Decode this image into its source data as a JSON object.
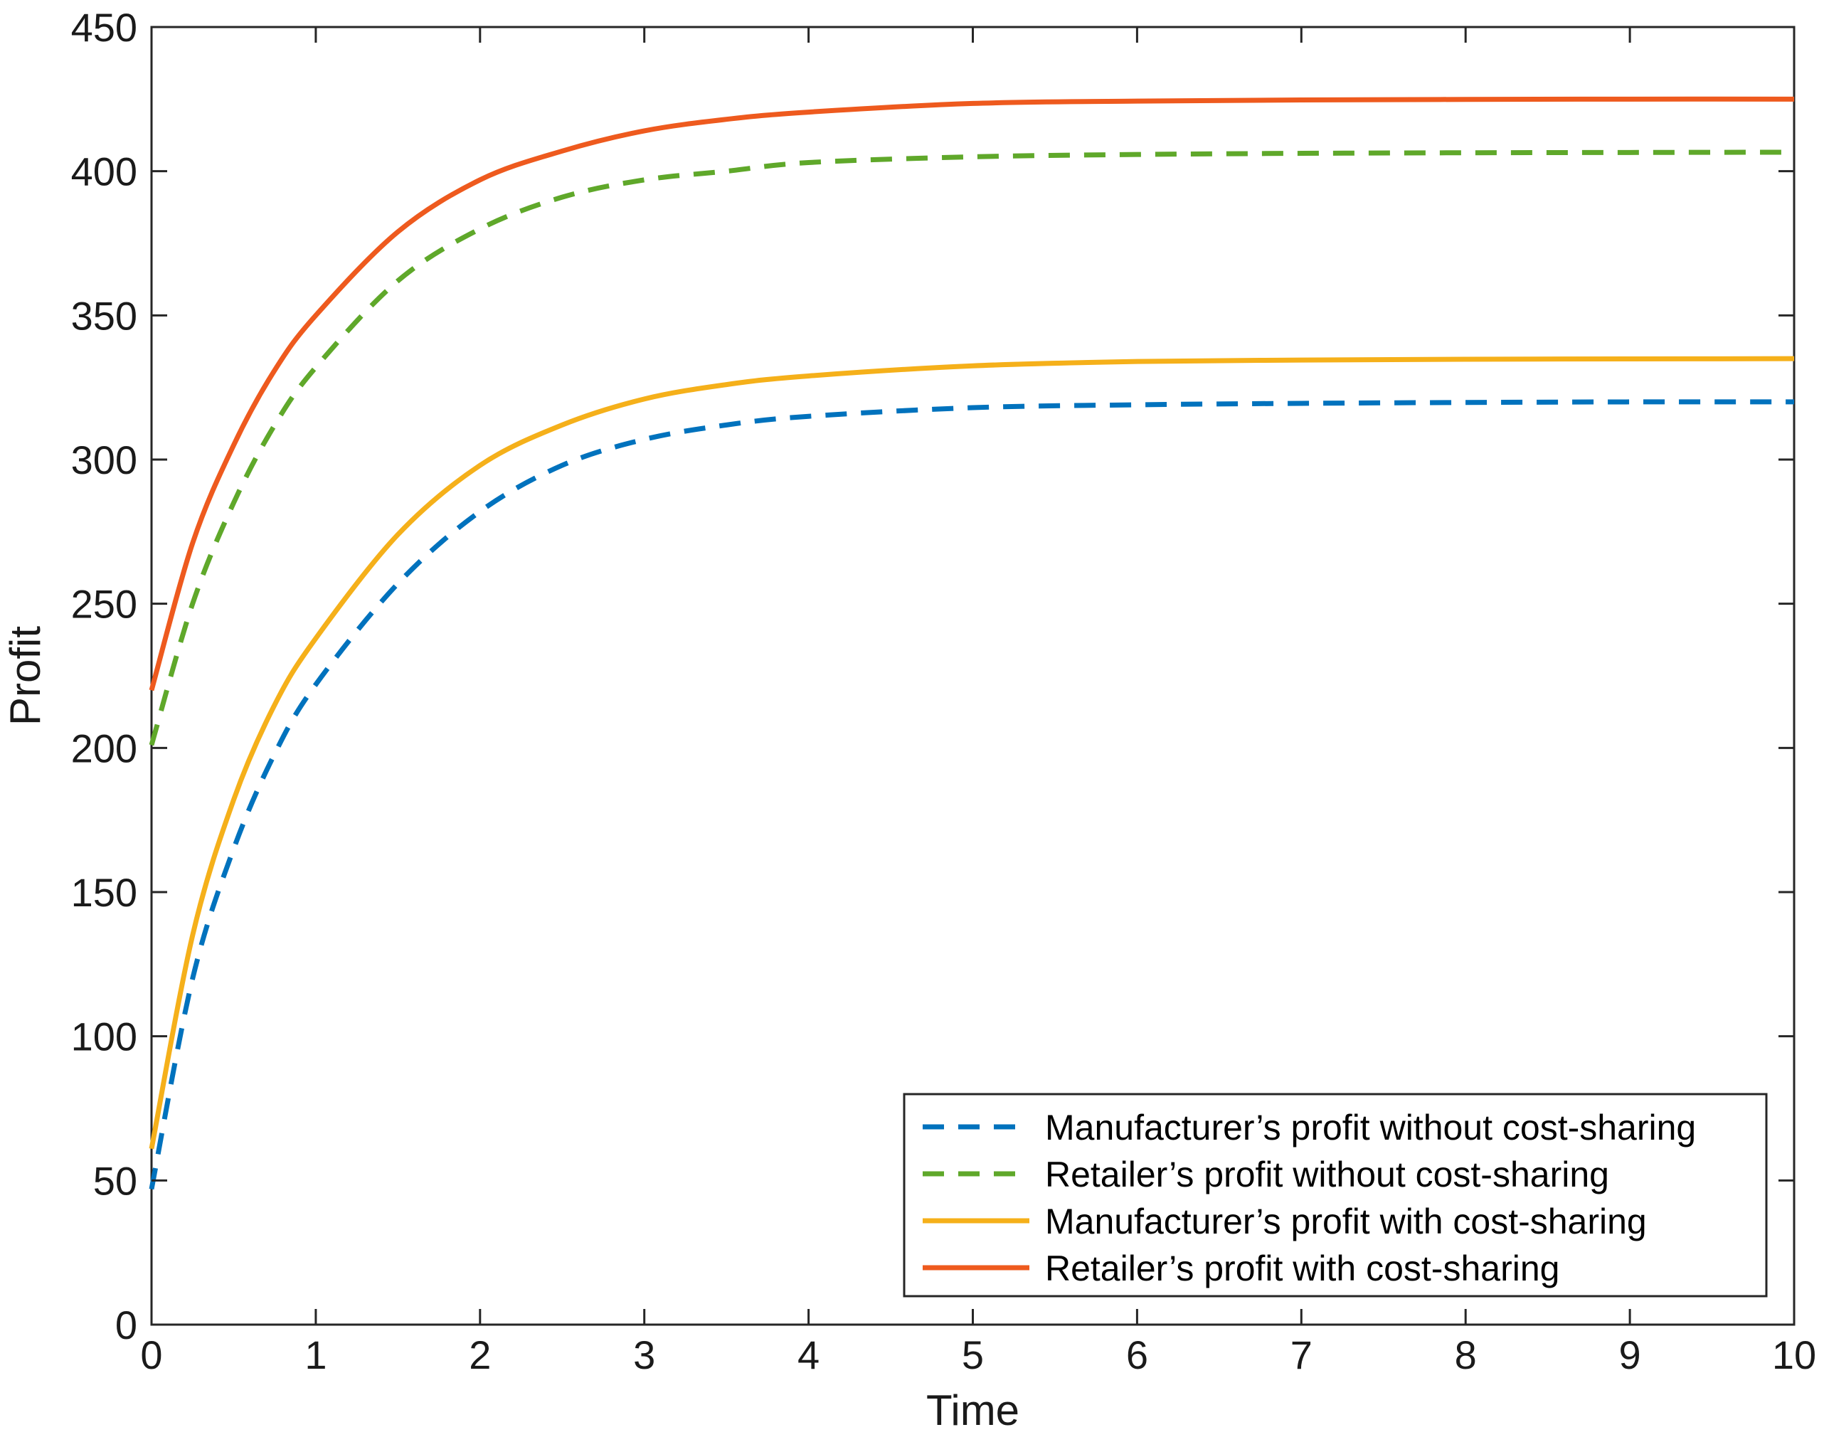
{
  "chart_data": {
    "type": "line",
    "title": "",
    "xlabel": "Time",
    "ylabel": "Profit",
    "xlim": [
      0,
      10
    ],
    "ylim": [
      0,
      450
    ],
    "xticks": [
      "0",
      "1",
      "2",
      "3",
      "4",
      "5",
      "6",
      "7",
      "8",
      "9",
      "10"
    ],
    "yticks": [
      "0",
      "50",
      "100",
      "150",
      "200",
      "250",
      "300",
      "350",
      "400",
      "450"
    ],
    "grid": false,
    "legend_location": "bottom-right",
    "x": [
      0,
      0.25,
      0.5,
      0.75,
      1,
      1.5,
      2,
      2.5,
      3,
      3.5,
      4,
      5,
      6,
      7,
      8,
      9,
      10
    ],
    "series": [
      {
        "name": "Manufacturer’s profit without cost-sharing",
        "color": "#0072BD",
        "style": "dashed",
        "values": [
          47,
          120,
          165,
          198,
          222,
          257,
          282,
          298,
          307,
          312,
          315,
          318,
          319,
          319.5,
          319.8,
          320,
          320
        ]
      },
      {
        "name": "Retailer’s profit without cost-sharing",
        "color": "#5FA82A",
        "style": "dashed",
        "values": [
          201,
          250,
          285,
          312,
          332,
          362,
          380,
          391,
          397,
          400,
          403,
          405,
          405.8,
          406.2,
          406.4,
          406.5,
          406.6
        ]
      },
      {
        "name": "Manufacturer’s profit with cost-sharing",
        "color": "#F5B01A",
        "style": "solid",
        "values": [
          61,
          135,
          182,
          215,
          238,
          274,
          298,
          312,
          321,
          326,
          329,
          332.5,
          334,
          334.5,
          334.8,
          334.9,
          335
        ]
      },
      {
        "name": "Retailer’s profit with cost-sharing",
        "color": "#EE5A1E",
        "style": "solid",
        "values": [
          220,
          271,
          305,
          331,
          350,
          379,
          397,
          407,
          414,
          418,
          420.5,
          423.5,
          424.3,
          424.7,
          424.9,
          425,
          425
        ]
      }
    ]
  }
}
